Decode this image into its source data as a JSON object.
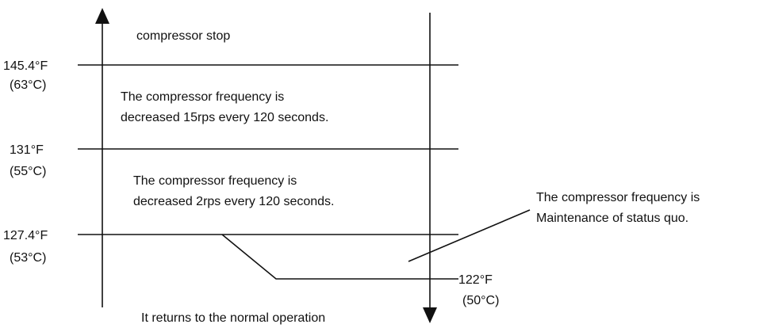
{
  "zones": [
    {
      "label": "compressor stop"
    },
    {
      "label": "The compressor frequency is\ndecreased 15rps every 120 seconds."
    },
    {
      "label": "The compressor frequency is\ndecreased 2rps every 120 seconds."
    },
    {
      "label": "The compressor frequency is\nMaintenance of status quo."
    },
    {
      "label": "It returns to the normal operation"
    }
  ],
  "thresholds": [
    {
      "f": "145.4°F",
      "c": "(63°C)"
    },
    {
      "f": "131°F",
      "c": "(55°C)"
    },
    {
      "f": "127.4°F",
      "c": "(53°C)"
    },
    {
      "f": "122°F",
      "c": "(50°C)"
    }
  ]
}
